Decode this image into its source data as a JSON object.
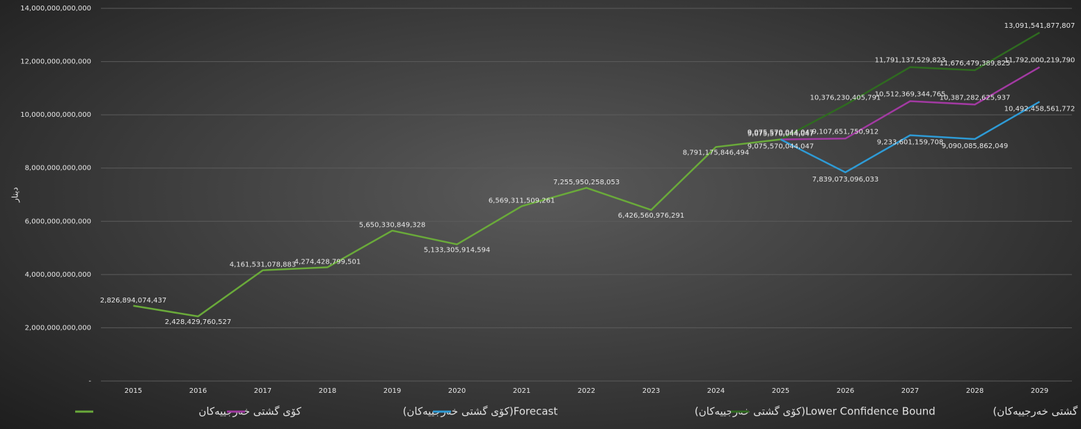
{
  "chart_data": {
    "type": "line",
    "y_label": "دینار",
    "categories": [
      "2015",
      "2016",
      "2017",
      "2018",
      "2019",
      "2020",
      "2021",
      "2022",
      "2023",
      "2024",
      "2025",
      "2026",
      "2027",
      "2028",
      "2029"
    ],
    "ylim": [
      0,
      14000000000000
    ],
    "yticks": [
      {
        "value": 0,
        "label": "-"
      },
      {
        "value": 2000000000000,
        "label": "2,000,000,000,000"
      },
      {
        "value": 4000000000000,
        "label": "4,000,000,000,000"
      },
      {
        "value": 6000000000000,
        "label": "6,000,000,000,000"
      },
      {
        "value": 8000000000000,
        "label": "8,000,000,000,000"
      },
      {
        "value": 10000000000000,
        "label": "10,000,000,000,000"
      },
      {
        "value": 12000000000000,
        "label": "12,000,000,000,000"
      },
      {
        "value": 14000000000000,
        "label": "14,000,000,000,000"
      }
    ],
    "grid": true,
    "legend": "bottom",
    "series": [
      {
        "name": "کۆی گشتی خەرجییەکان",
        "color": "#6aaa3a",
        "values": [
          2826894074437,
          2428429760527,
          4161531078883,
          4274428799501,
          5650330849328,
          5133305914594,
          6569311509261,
          7255950258053,
          6426560976291,
          8791175846494,
          9075570044047,
          null,
          null,
          null,
          null
        ],
        "value_labels": [
          "2,826,894,074,437",
          "2,428,429,760,527",
          "4,161,531,078,883",
          "4,274,428,799,501",
          "5,650,330,849,328",
          "5,133,305,914,594",
          "6,569,311,509,261",
          "7,255,950,258,053",
          "6,426,560,976,291",
          "8,791,175,846,494",
          "9,075,570,044,047",
          null,
          null,
          null,
          null
        ]
      },
      {
        "name": "Forecast(کۆی گشتی خەرجییەکان)",
        "color": "#a23aa2",
        "values": [
          null,
          null,
          null,
          null,
          null,
          null,
          null,
          null,
          null,
          null,
          9075570044047,
          9107651750912,
          10512369344765,
          10387282625937,
          11792000219790
        ],
        "value_labels": [
          null,
          null,
          null,
          null,
          null,
          null,
          null,
          null,
          null,
          null,
          "9,075,570,044,047",
          "9,107,651,750,912",
          "10,512,369,344,765",
          "10,387,282,625,937",
          "11,792,000,219,790"
        ]
      },
      {
        "name": "Lower Confidence Bound(کۆی گشتی خەرجییەکان)",
        "color": "#2e9bd6",
        "values": [
          null,
          null,
          null,
          null,
          null,
          null,
          null,
          null,
          null,
          null,
          9075570044047,
          7839073096033,
          9233601159708,
          9090085862049,
          10492458561772
        ],
        "value_labels": [
          null,
          null,
          null,
          null,
          null,
          null,
          null,
          null,
          null,
          null,
          "9,075,570,044,047",
          "7,839,073,096,033",
          "9,233,601,159,708",
          "9,090,085,862,049",
          "10,492,458,561,772"
        ]
      },
      {
        "name": "Upper Confidence Bound(کۆی گشتی خەرجییەکان)",
        "color": "#2f6b20",
        "values": [
          null,
          null,
          null,
          null,
          null,
          null,
          null,
          null,
          null,
          null,
          9075570044047,
          10376230405791,
          11791137529823,
          11676479389825,
          13091541877807
        ],
        "value_labels": [
          null,
          null,
          null,
          null,
          null,
          null,
          null,
          null,
          null,
          null,
          "9,075,570,044,047",
          "10,376,230,405,791",
          "11,791,137,529,823",
          "11,676,479,389,825",
          "13,091,541,877,807"
        ]
      }
    ]
  }
}
